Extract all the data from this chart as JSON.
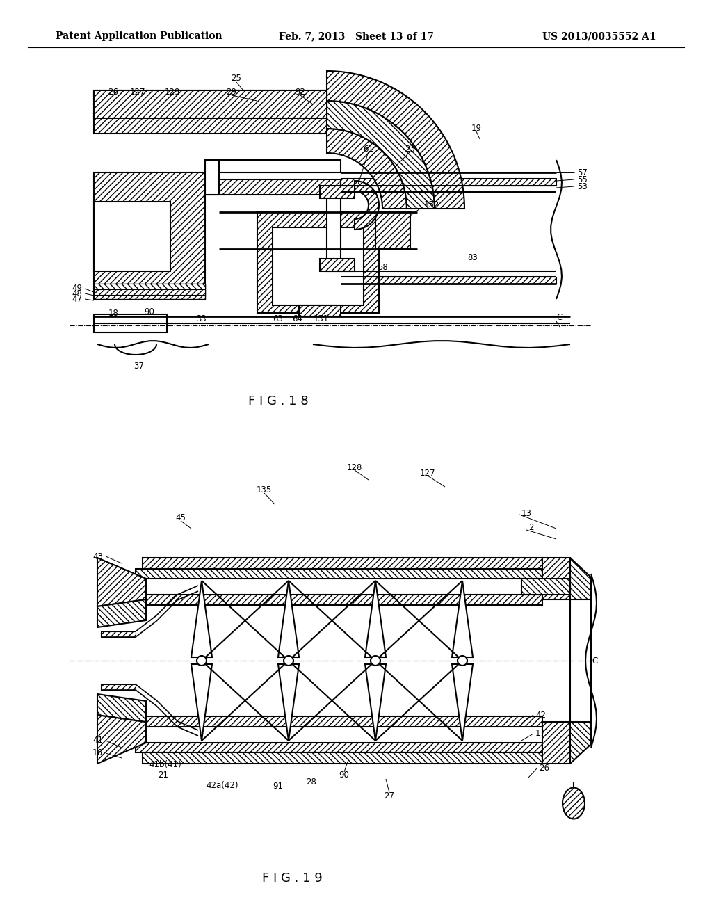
{
  "background_color": "#ffffff",
  "page_width": 10.24,
  "page_height": 13.2,
  "header": {
    "left": "Patent Application Publication",
    "center": "Feb. 7, 2013   Sheet 13 of 17",
    "right": "US 2013/0035552 A1",
    "fontsize": 10
  }
}
